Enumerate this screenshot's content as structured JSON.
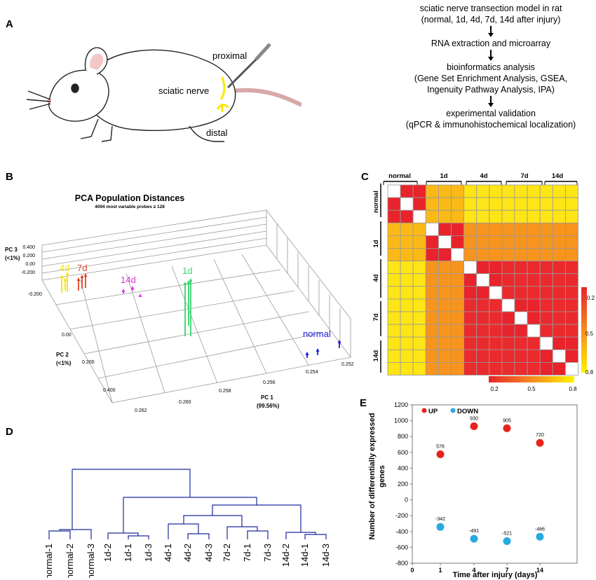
{
  "panels": {
    "a": "A",
    "b": "B",
    "c": "C",
    "d": "D",
    "e": "E"
  },
  "rat": {
    "proximal": "proximal",
    "sciatic": "sciatic nerve",
    "distal": "distal"
  },
  "flow": {
    "s1": "sciatic nerve transection model in rat",
    "s1b": "(normal, 1d, 4d, 7d, 14d after injury)",
    "s2": "RNA extraction and microarray",
    "s3": "bioinformatics analysis",
    "s3b": "(Gene Set Enrichment Analysis, GSEA,",
    "s3c": "Ingenuity Pathway Analysis, IPA)",
    "s4": "experimental validation",
    "s4b": "(qPCR & immunohistochemical localization)"
  },
  "pca": {
    "title": "PCA Population Distances",
    "subtitle": "4094 most variable probes ≥ 128",
    "pc3_label": "PC 3",
    "pc3_sub": "(<1%)",
    "pc2_label": "PC 2",
    "pc2_sub": "(<1%)",
    "pc1_label": "PC 1",
    "pc1_sub": "(99.56%)",
    "z_ticks": [
      "0.400",
      "0.200",
      "0.00",
      "-0.200"
    ],
    "y_ticks": [
      "-0.200",
      "0.00",
      "0.200",
      "0.400"
    ],
    "x_ticks": [
      "0.262",
      "0.260",
      "0.258",
      "0.256",
      "0.254",
      "0.252"
    ],
    "groups": [
      {
        "label": "4d",
        "color": "#f2e600"
      },
      {
        "label": "7d",
        "color": "#e0452a"
      },
      {
        "label": "14d",
        "color": "#e033d8"
      },
      {
        "label": "1d",
        "color": "#33d66a"
      },
      {
        "label": "normal",
        "color": "#1a1ae0"
      }
    ]
  },
  "heatmap": {
    "groups": [
      "normal",
      "1d",
      "4d",
      "7d",
      "14d"
    ],
    "scale_right": [
      "0.2",
      "0.5",
      "0.8"
    ],
    "scale_bottom": [
      "0.2",
      "0.5",
      "0.8"
    ]
  },
  "dendrogram": {
    "leaves": [
      "normal-1",
      "normal-2",
      "normal-3",
      "1d-2",
      "1d-1",
      "1d-3",
      "4d-1",
      "4d-2",
      "4d-3",
      "7d-2",
      "7d-1",
      "7d-3",
      "14d-2",
      "14d-1",
      "14d-3"
    ]
  },
  "chart_data": {
    "type": "scatter",
    "title": "",
    "xlabel": "Time after injury (days)",
    "ylabel": "Number of differentially expressed genes",
    "x_ticks": [
      "0",
      "1",
      "4",
      "7",
      "14"
    ],
    "ylim": [
      -800,
      1200
    ],
    "y_ticks": [
      "1200",
      "1000",
      "800",
      "600",
      "400",
      "200",
      "0",
      "-200",
      "-400",
      "-600",
      "-800"
    ],
    "series": [
      {
        "name": "UP",
        "color": "#e8231d",
        "x": [
          "1",
          "4",
          "7",
          "14"
        ],
        "values": [
          576,
          930,
          905,
          720
        ],
        "labels": [
          "576",
          "930",
          "905",
          "720"
        ]
      },
      {
        "name": "DOWN",
        "color": "#27a9e1",
        "x": [
          "1",
          "4",
          "7",
          "14"
        ],
        "values": [
          -342,
          -491,
          -521,
          -466
        ],
        "labels": [
          "-342",
          "-491",
          "-521",
          "-466"
        ]
      }
    ]
  }
}
